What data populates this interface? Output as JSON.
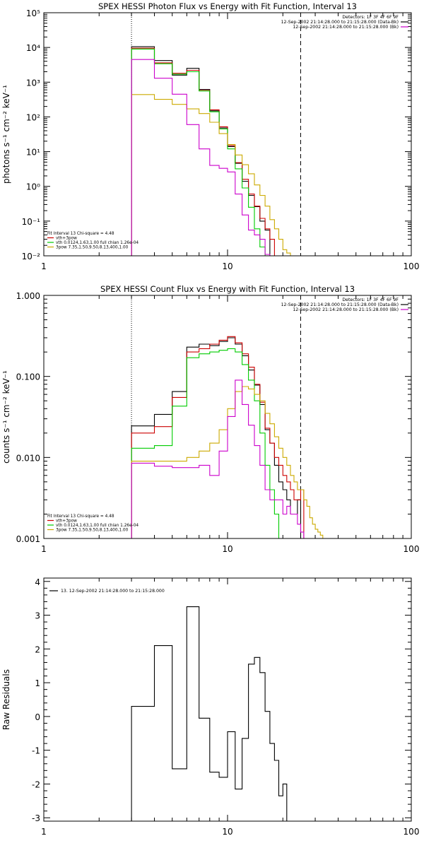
{
  "chart_data": [
    {
      "type": "line",
      "title": "SPEX HESSI Photon Flux vs Energy with Fit Function, Interval 13",
      "xlabel": "",
      "ylabel": "photons s⁻¹ cm⁻² keV⁻¹",
      "xscale": "log",
      "yscale": "log",
      "xlim": [
        1,
        100
      ],
      "ylim": [
        0.01,
        100000
      ],
      "xticks": [
        {
          "v": 1,
          "label": "1"
        },
        {
          "v": 10,
          "label": "10"
        },
        {
          "v": 100,
          "label": "100"
        }
      ],
      "yticks": [
        {
          "v": 0.01,
          "label": "10⁻²"
        },
        {
          "v": 0.1,
          "label": "10⁻¹"
        },
        {
          "v": 1,
          "label": "10⁰"
        },
        {
          "v": 10,
          "label": "10¹"
        },
        {
          "v": 100,
          "label": "10²"
        },
        {
          "v": 1000,
          "label": "10³"
        },
        {
          "v": 10000,
          "label": "10⁴"
        },
        {
          "v": 100000,
          "label": "10⁵"
        }
      ],
      "vlines": [
        {
          "x": 3,
          "style": "dotted"
        },
        {
          "x": 25,
          "style": "dashed"
        }
      ],
      "legend_top": [
        {
          "text": "Detectors: 1F 3F 4F 6F 9F",
          "color": ""
        },
        {
          "text": "12-Sep-2002 21:14:28.000 to 21:15:28.000 (Data-Bk)",
          "color": "#000000"
        },
        {
          "text": "12-Sep-2002 21:14:28.000 to 21:15:28.000 (Bk)",
          "color": "#cc00cc"
        }
      ],
      "legend_bottom": [
        {
          "text": "Fit Interval 13   Chi-square = 4.48",
          "color": ""
        },
        {
          "text": "vth+3pow",
          "color": "#cc0000"
        },
        {
          "text": "vth 0.0124,1.63,1.00  full chian 1.26e-04",
          "color": "#00cc00"
        },
        {
          "text": "3pow 7.35,1.50,9.50,8.13,400,1.00",
          "color": "#ccaa00"
        }
      ],
      "edges": [
        3,
        4,
        5,
        6,
        7,
        8,
        9,
        10,
        11,
        12,
        13,
        14,
        15,
        16,
        17,
        18,
        19,
        20,
        21,
        22,
        23,
        24,
        25,
        26,
        27,
        28,
        29,
        30
      ],
      "series": [
        {
          "name": "12-Sep-2002 21:14:28.000 to 21:15:28.000 (Data-Bk)",
          "color": "#000000",
          "values": [
            10500,
            4200,
            1600,
            2500,
            620,
            150,
            48,
            14,
            4.6,
            1.4,
            0.55,
            0.26,
            0.1,
            0.055,
            null,
            null,
            null,
            null,
            null,
            null,
            null,
            null,
            null,
            null,
            null,
            null,
            null
          ]
        },
        {
          "name": "vth+3pow",
          "color": "#cc0000",
          "values": [
            9500,
            3600,
            1800,
            2200,
            580,
            160,
            52,
            15,
            4.8,
            1.6,
            0.6,
            0.27,
            0.12,
            0.06,
            0.03,
            null,
            null,
            null,
            null,
            null,
            null,
            null,
            null,
            null,
            null,
            null,
            null
          ]
        },
        {
          "name": "vth",
          "color": "#00cc00",
          "values": [
            9000,
            3400,
            1700,
            2000,
            560,
            140,
            45,
            12,
            3.2,
            0.9,
            0.25,
            0.06,
            0.018,
            null,
            null,
            null,
            null,
            null,
            null,
            null,
            null,
            null,
            null,
            null,
            null,
            null,
            null
          ]
        },
        {
          "name": "3pow",
          "color": "#ccaa00",
          "values": [
            440,
            320,
            230,
            170,
            125,
            70,
            33,
            16,
            8,
            4.2,
            2.3,
            1.1,
            0.55,
            0.27,
            0.11,
            0.06,
            0.03,
            0.015,
            0.012,
            null,
            null,
            null,
            null,
            null,
            null,
            null,
            null
          ]
        },
        {
          "name": "12-Sep-2002 21:14:28.000 to 21:15:28.000 (Bk)",
          "color": "#cc00cc",
          "values": [
            4500,
            1300,
            450,
            60,
            12,
            4,
            3.3,
            2.6,
            0.6,
            0.15,
            0.055,
            0.04,
            0.03,
            0.011,
            0.008,
            null,
            null,
            null,
            null,
            null,
            null,
            null,
            null,
            null,
            null,
            null,
            null
          ]
        }
      ]
    },
    {
      "type": "line",
      "title": "SPEX HESSI Count Flux vs Energy with Fit Function, Interval 13",
      "xlabel": "",
      "ylabel": "counts s⁻¹ cm⁻² keV⁻¹",
      "xscale": "log",
      "yscale": "log",
      "xlim": [
        1,
        100
      ],
      "ylim": [
        0.001,
        1
      ],
      "xticks": [
        {
          "v": 1,
          "label": "1"
        },
        {
          "v": 10,
          "label": "10"
        },
        {
          "v": 100,
          "label": "100"
        }
      ],
      "yticks": [
        {
          "v": 0.001,
          "label": "0.001"
        },
        {
          "v": 0.01,
          "label": "0.010"
        },
        {
          "v": 0.1,
          "label": "0.100"
        },
        {
          "v": 1,
          "label": "1.000"
        }
      ],
      "vlines": [
        {
          "x": 3,
          "style": "dotted"
        },
        {
          "x": 25,
          "style": "dashed"
        }
      ],
      "legend_top": [
        {
          "text": "Detectors: 1F 3F 4F 6F 9F",
          "color": ""
        },
        {
          "text": "12-Sep-2002 21:14:28.000 to 21:15:28.000 (Data-Bk)",
          "color": "#000000"
        },
        {
          "text": "12-Sep-2002 21:14:28.000 to 21:15:28.000 (Bk)",
          "color": "#cc00cc"
        }
      ],
      "legend_bottom": [
        {
          "text": "Fit Interval 13   Chi-square = 4.48",
          "color": ""
        },
        {
          "text": "vth+3pow",
          "color": "#cc0000"
        },
        {
          "text": "vth 0.0124,1.63,1.00  full chian 1.26e-04",
          "color": "#00cc00"
        },
        {
          "text": "3pow 7.35,1.50,9.50,8.13,400,1.00",
          "color": "#ccaa00"
        }
      ],
      "edges": [
        3,
        4,
        5,
        6,
        7,
        8,
        9,
        10,
        11,
        12,
        13,
        14,
        15,
        16,
        17,
        18,
        19,
        20,
        21,
        22,
        23,
        24,
        25,
        26,
        27,
        28,
        29,
        30,
        31,
        32,
        33,
        34
      ],
      "series": [
        {
          "name": "12-Sep-2002 21:14:28.000 to 21:15:28.000 (Data-Bk)",
          "color": "#000000",
          "values": [
            0.0245,
            0.034,
            0.065,
            0.23,
            0.25,
            0.24,
            0.27,
            0.3,
            0.25,
            0.18,
            0.12,
            0.078,
            0.045,
            0.022,
            0.015,
            0.008,
            0.005,
            0.004,
            0.003,
            0.002,
            0.002,
            0.003,
            null,
            null,
            null,
            null,
            null,
            null,
            null,
            null,
            null
          ]
        },
        {
          "name": "vth+3pow",
          "color": "#cc0000",
          "values": [
            0.02,
            0.024,
            0.055,
            0.2,
            0.22,
            0.25,
            0.28,
            0.31,
            0.26,
            0.19,
            0.13,
            0.08,
            0.048,
            0.023,
            0.015,
            0.01,
            0.008,
            0.006,
            0.005,
            0.004,
            0.003,
            0.003,
            0.004,
            null,
            null,
            null,
            null,
            null,
            null,
            null,
            null
          ]
        },
        {
          "name": "vth",
          "color": "#00cc00",
          "values": [
            0.013,
            0.014,
            0.043,
            0.17,
            0.19,
            0.2,
            0.21,
            0.22,
            0.2,
            0.14,
            0.09,
            0.05,
            0.02,
            0.008,
            0.004,
            0.002,
            null,
            null,
            null,
            null,
            null,
            null,
            null,
            null,
            null,
            null,
            null,
            null,
            null,
            null,
            null
          ]
        },
        {
          "name": "3pow",
          "color": "#ccaa00",
          "values": [
            0.009,
            0.009,
            0.009,
            0.01,
            0.012,
            0.015,
            0.022,
            0.04,
            0.065,
            0.075,
            0.07,
            0.06,
            0.05,
            0.035,
            0.026,
            0.018,
            0.013,
            0.01,
            0.008,
            0.006,
            0.005,
            0.004,
            0.004,
            0.003,
            0.0025,
            0.0018,
            0.0015,
            0.0013,
            0.0012,
            0.0011,
            0.001
          ]
        },
        {
          "name": "12-Sep-2002 21:14:28.000 to 21:15:28.000 (Bk)",
          "color": "#cc00cc",
          "values": [
            0.0085,
            0.0078,
            0.0075,
            0.0075,
            0.008,
            0.006,
            0.012,
            0.032,
            0.09,
            0.045,
            0.025,
            0.014,
            0.008,
            0.004,
            0.003,
            0.003,
            0.003,
            0.002,
            0.0025,
            0.002,
            0.002,
            0.0015,
            0.0012,
            null,
            null,
            null,
            null,
            null,
            null,
            null,
            null
          ]
        }
      ]
    },
    {
      "type": "line",
      "title": "",
      "xlabel": "",
      "ylabel": "Raw Residuals",
      "xscale": "log",
      "yscale": "linear",
      "xlim": [
        1,
        100
      ],
      "ylim": [
        -3.1,
        4.1
      ],
      "xticks": [
        {
          "v": 1,
          "label": "1"
        },
        {
          "v": 10,
          "label": "10"
        },
        {
          "v": 100,
          "label": "100"
        }
      ],
      "yticks": [
        {
          "v": -3,
          "label": "-3"
        },
        {
          "v": -2,
          "label": "-2"
        },
        {
          "v": -1,
          "label": "-1"
        },
        {
          "v": 0,
          "label": "0"
        },
        {
          "v": 1,
          "label": "1"
        },
        {
          "v": 2,
          "label": "2"
        },
        {
          "v": 3,
          "label": "3"
        },
        {
          "v": 4,
          "label": "4"
        }
      ],
      "vlines": [],
      "legend_top": [],
      "legend_bottom": [],
      "legend_top_left": [
        {
          "text": "13. 12-Sep-2002 21:14:28.000 to 21:15:28.000",
          "color": "#000000"
        }
      ],
      "edges": [
        3,
        4,
        5,
        6,
        7,
        8,
        9,
        10,
        11,
        12,
        13,
        14,
        15,
        16,
        17,
        18,
        19,
        20,
        21,
        22,
        23,
        24,
        25
      ],
      "series": [
        {
          "name": "13. 12-Sep-2002 21:14:28.000 to 21:15:28.000",
          "color": "#000000",
          "values": [
            0.3,
            2.1,
            -1.55,
            3.25,
            -0.05,
            -1.65,
            -1.8,
            -0.45,
            -2.15,
            -0.65,
            1.55,
            1.75,
            1.3,
            0.15,
            -0.8,
            -1.3,
            -2.35,
            -2.0,
            null,
            null,
            null,
            null
          ]
        }
      ],
      "start_from_bottom": true
    }
  ]
}
